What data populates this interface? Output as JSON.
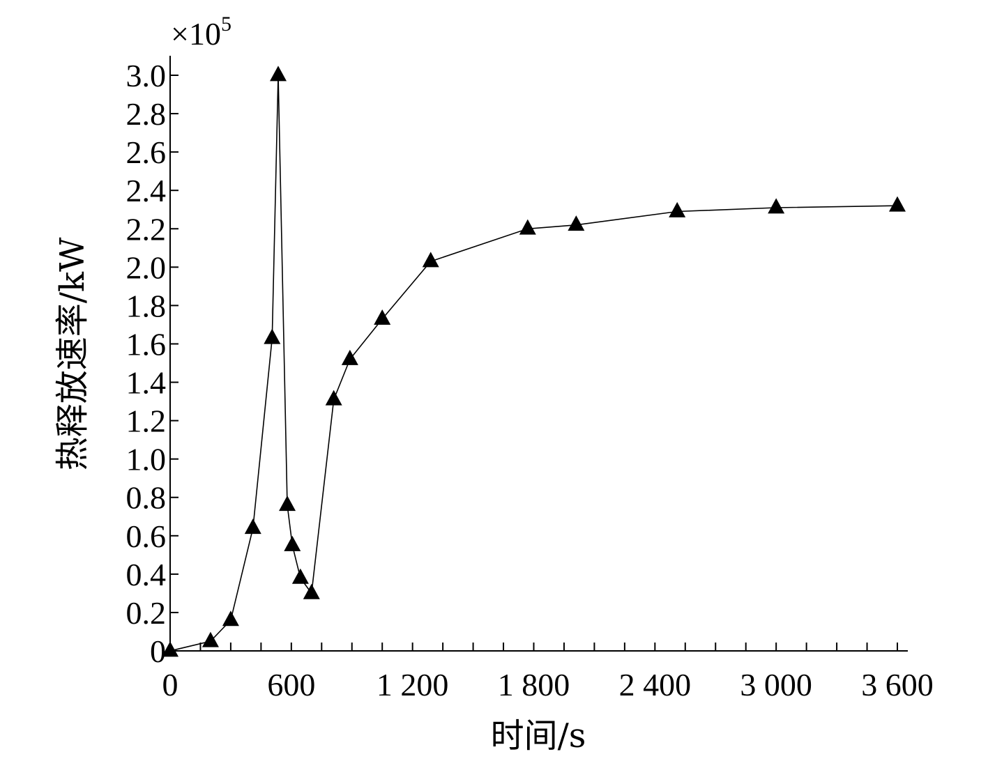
{
  "chart_data": {
    "type": "line",
    "title": "",
    "xlabel": "时间/s",
    "ylabel": "热释放速率/kW",
    "y_multiplier_label": "×10",
    "y_multiplier_exponent": "5",
    "xlim": [
      0,
      3600
    ],
    "ylim": [
      0,
      3.0
    ],
    "x_ticks": [
      0,
      600,
      1200,
      1800,
      2400,
      3000,
      3600
    ],
    "x_tick_labels": [
      "0",
      "600",
      "1 200",
      "1 800",
      "2 400",
      "3 000",
      "3 600"
    ],
    "x_minor_step": 150,
    "y_ticks": [
      0,
      0.2,
      0.4,
      0.6,
      0.8,
      1.0,
      1.2,
      1.4,
      1.6,
      1.8,
      2.0,
      2.2,
      2.4,
      2.6,
      2.8,
      3.0
    ],
    "y_tick_labels": [
      "0",
      "0.2",
      "0.4",
      "0.6",
      "0.8",
      "1.0",
      "1.2",
      "1.4",
      "1.6",
      "1.8",
      "2.0",
      "2.2",
      "2.4",
      "2.6",
      "2.8",
      "3.0"
    ],
    "grid": false,
    "legend": "none",
    "marker": "triangle",
    "color": "#000000",
    "series": [
      {
        "x": [
          0,
          200,
          300,
          410,
          505,
          535,
          580,
          605,
          645,
          700,
          810,
          890,
          1050,
          1290,
          1770,
          2010,
          2510,
          3000,
          3600
        ],
        "values": [
          0,
          0.05,
          0.16,
          0.64,
          1.63,
          3.0,
          0.76,
          0.55,
          0.38,
          0.3,
          1.31,
          1.52,
          1.73,
          2.03,
          2.2,
          2.22,
          2.29,
          2.31,
          2.32
        ]
      }
    ]
  }
}
